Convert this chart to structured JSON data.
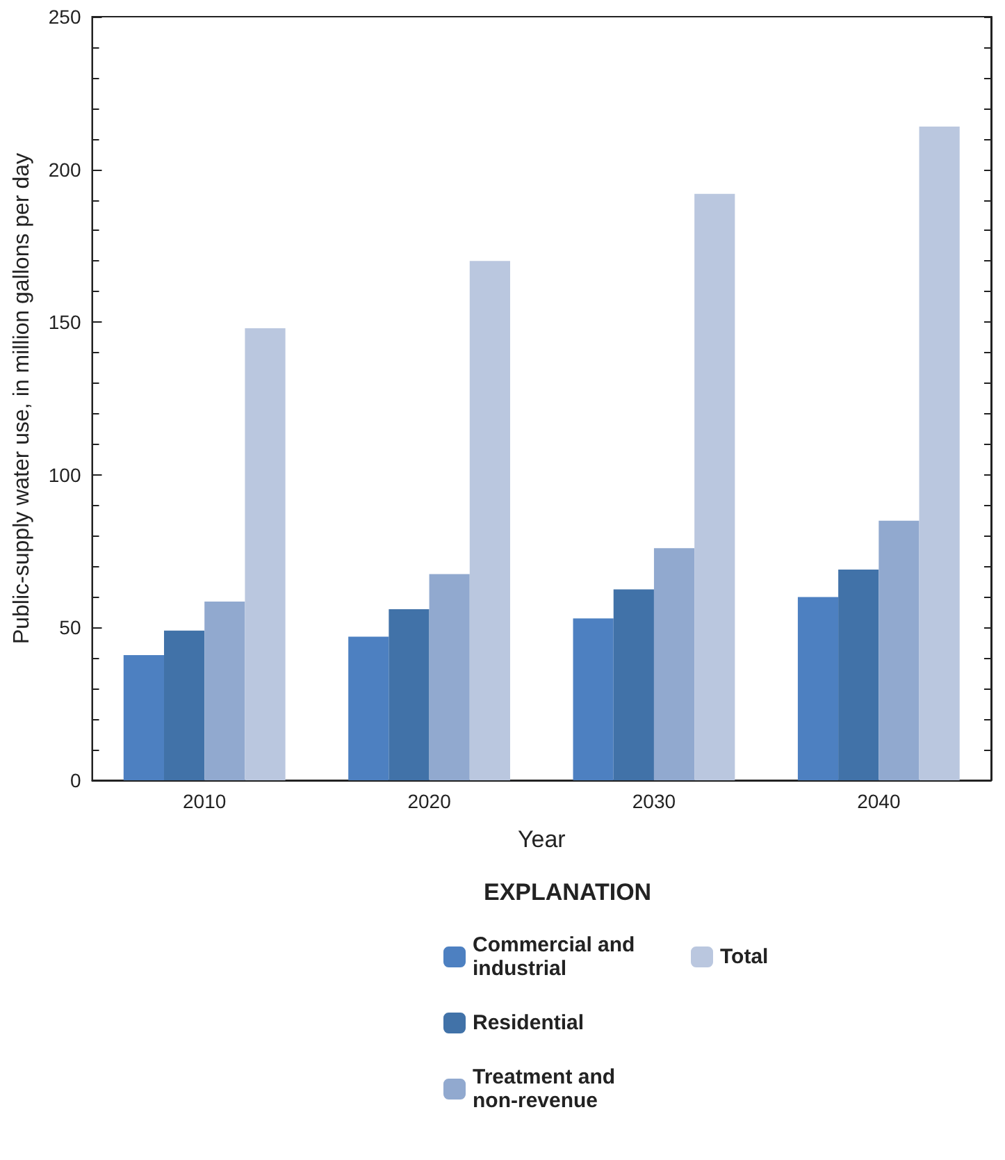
{
  "chart_data": {
    "type": "bar",
    "xlabel": "Year",
    "ylabel": "Public-supply water use, in million gallons per day",
    "legend_title": "EXPLANATION",
    "categories": [
      "2010",
      "2020",
      "2030",
      "2040"
    ],
    "series": [
      {
        "name": "Commercial and industrial",
        "color": "#4d80c1",
        "values": [
          41,
          47,
          53,
          60
        ]
      },
      {
        "name": "Residential",
        "color": "#4172a8",
        "values": [
          49,
          56,
          62.5,
          69
        ]
      },
      {
        "name": "Treatment and non-revenue",
        "color": "#91a9cf",
        "values": [
          58.5,
          67.5,
          76,
          85
        ]
      },
      {
        "name": "Total",
        "color": "#bac7df",
        "values": [
          148,
          170,
          192,
          214
        ]
      }
    ],
    "ylim": [
      0,
      250
    ],
    "yticks": [
      0,
      50,
      100,
      150,
      200,
      250
    ],
    "grid": false,
    "legend": "bottom"
  }
}
